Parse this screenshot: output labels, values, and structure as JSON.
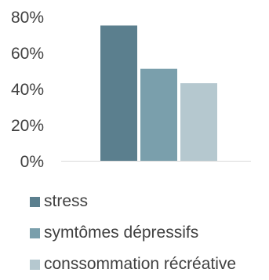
{
  "chart_data": {
    "type": "bar",
    "categories": [
      ""
    ],
    "series": [
      {
        "name": "stress",
        "values": [
          75
        ],
        "color": "#5b7f8e"
      },
      {
        "name": "symtômes dépressifs",
        "values": [
          51
        ],
        "color": "#7a9fac"
      },
      {
        "name": "conssommation récréative",
        "values": [
          43
        ],
        "color": "#b5c8cf"
      }
    ],
    "ylim": [
      0,
      80
    ],
    "yticks": [
      0,
      20,
      40,
      60,
      80
    ],
    "ytick_labels": [
      "0%",
      "20%",
      "40%",
      "60%",
      "80%"
    ],
    "xlabel": "",
    "ylabel": "",
    "grid": false,
    "legend_position": "bottom-left",
    "axis_color": "#d9d9d9"
  }
}
